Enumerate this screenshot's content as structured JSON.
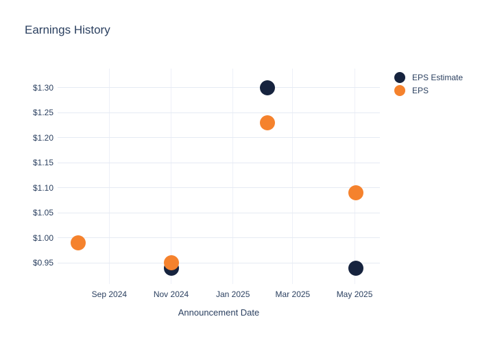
{
  "title": "Earnings History",
  "x_axis_title": "Announcement Date",
  "legend": [
    {
      "label": "EPS Estimate",
      "color": "#16233E"
    },
    {
      "label": "EPS",
      "color": "#F5822D"
    }
  ],
  "colors": {
    "text": "#2a3f5f",
    "background": "#ffffff",
    "h_gridline": "#e5eaf3",
    "v_gridline": "#edf0f8",
    "eps_estimate": "#16233E",
    "eps": "#F5822D"
  },
  "chart_data": {
    "type": "scatter",
    "title": "Earnings History",
    "xlabel": "Announcement Date",
    "ylabel": "",
    "grid": true,
    "legend_position": "right",
    "x_range": [
      "2024-07-12",
      "2025-05-26"
    ],
    "y_range": [
      0.908,
      1.338
    ],
    "x_ticks": [
      {
        "date": "2024-09-01",
        "label": "Sep 2024"
      },
      {
        "date": "2024-11-01",
        "label": "Nov 2024"
      },
      {
        "date": "2025-01-01",
        "label": "Jan 2025"
      },
      {
        "date": "2025-03-01",
        "label": "Mar 2025"
      },
      {
        "date": "2025-05-01",
        "label": "May 2025"
      }
    ],
    "y_ticks": [
      {
        "value": 0.95,
        "label": "$0.95"
      },
      {
        "value": 1.0,
        "label": "$1.00"
      },
      {
        "value": 1.05,
        "label": "$1.05"
      },
      {
        "value": 1.1,
        "label": "$1.10"
      },
      {
        "value": 1.15,
        "label": "$1.15"
      },
      {
        "value": 1.2,
        "label": "$1.20"
      },
      {
        "value": 1.25,
        "label": "$1.25"
      },
      {
        "value": 1.3,
        "label": "$1.30"
      }
    ],
    "series": [
      {
        "name": "EPS Estimate",
        "color": "#16233E",
        "points": [
          {
            "date": "2024-11-01",
            "value": 0.94
          },
          {
            "date": "2025-02-04",
            "value": 1.3
          },
          {
            "date": "2025-05-02",
            "value": 0.94
          }
        ]
      },
      {
        "name": "EPS",
        "color": "#F5822D",
        "points": [
          {
            "date": "2024-08-01",
            "value": 0.99
          },
          {
            "date": "2024-11-01",
            "value": 0.95
          },
          {
            "date": "2025-02-04",
            "value": 1.23
          },
          {
            "date": "2025-05-02",
            "value": 1.09
          }
        ]
      }
    ]
  }
}
